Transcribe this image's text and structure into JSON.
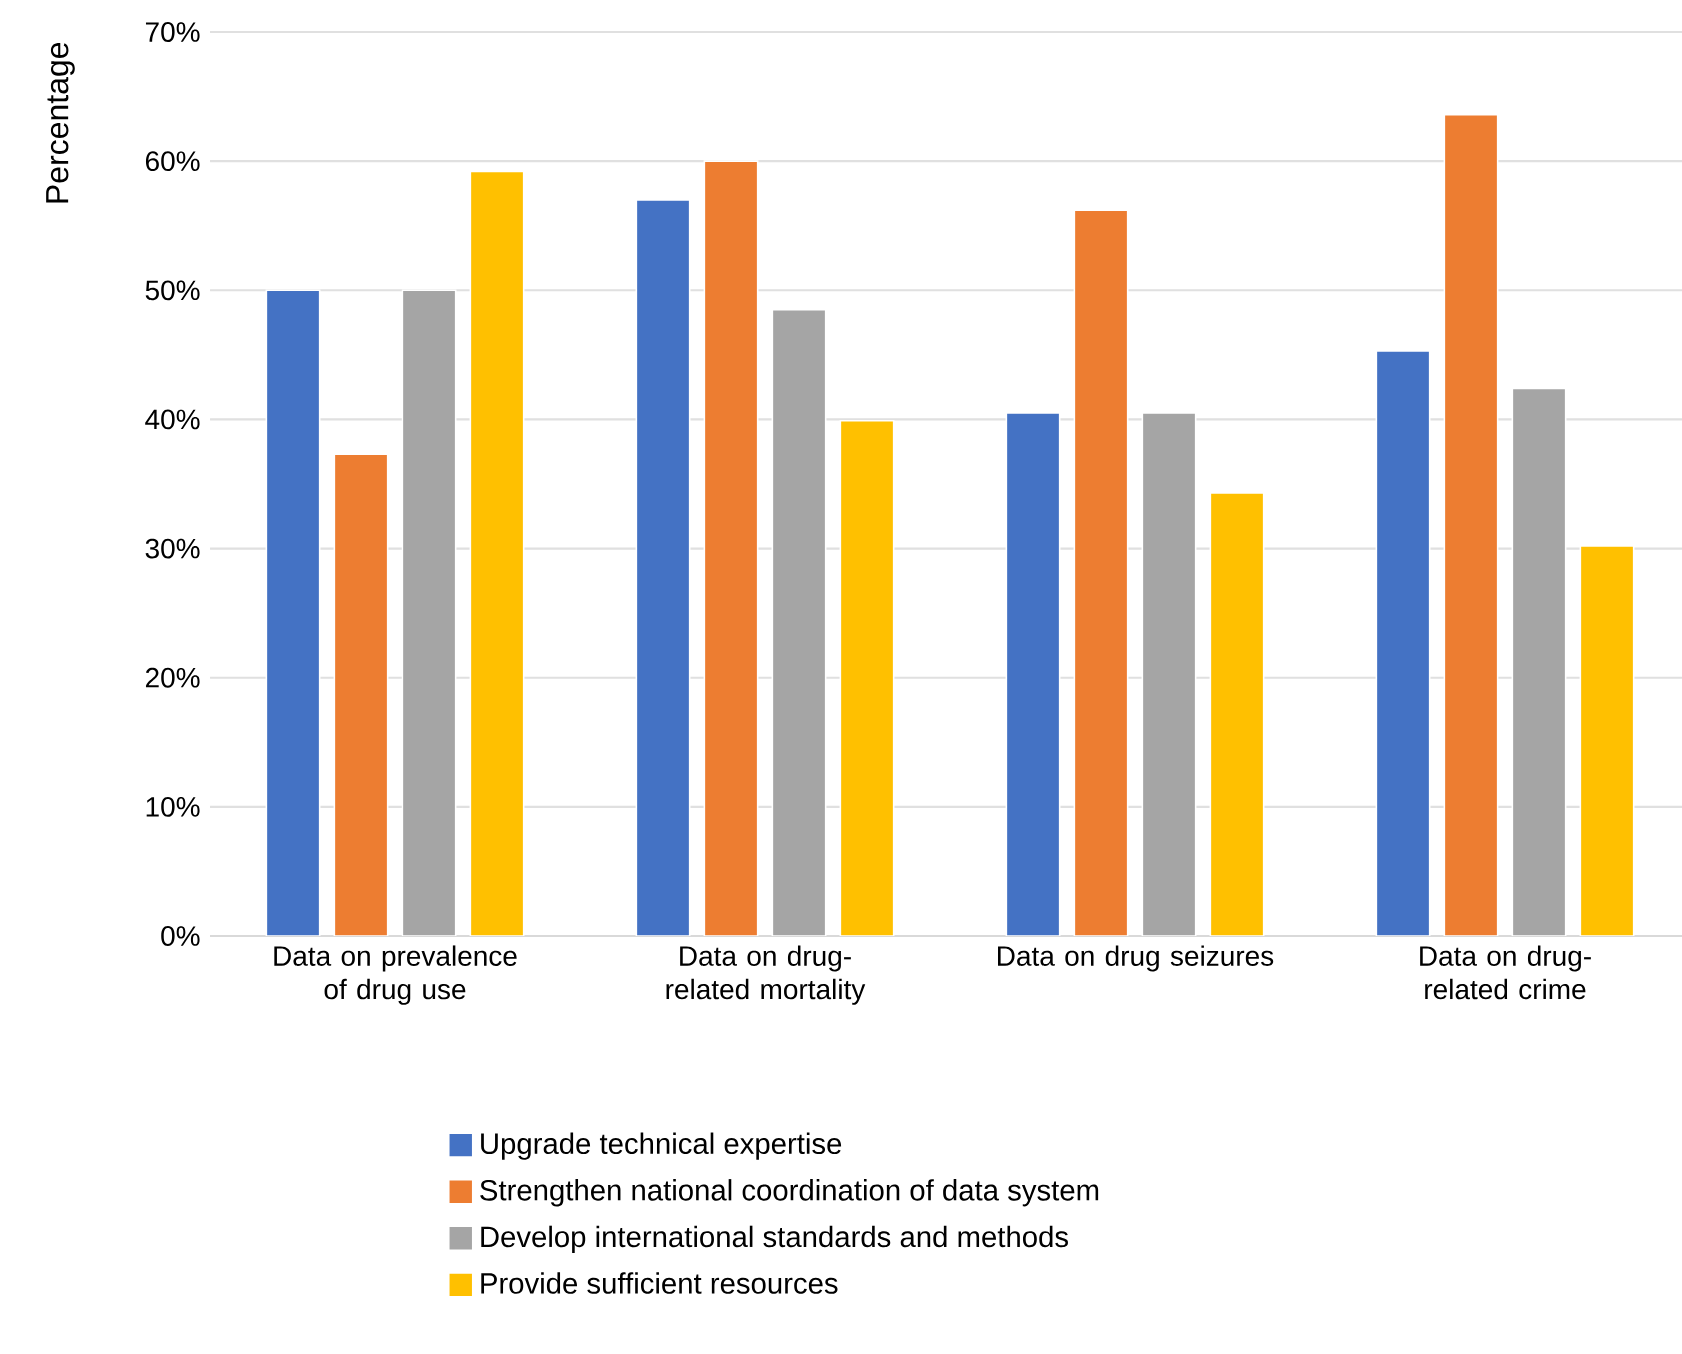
{
  "chart_data": {
    "type": "bar",
    "ylabel": "Percentage",
    "categories": [
      "Data on prevalence of drug use",
      "Data on drug-related mortality",
      "Data on drug seizures",
      "Data on drug-related crime"
    ],
    "series": [
      {
        "name": "Upgrade technical expertise",
        "color": "#4472c4",
        "values": [
          50.0,
          57.0,
          40.5,
          45.3
        ]
      },
      {
        "name": "Strengthen national coordination of data system",
        "color": "#ed7d31",
        "values": [
          37.3,
          60.0,
          56.2,
          63.6
        ]
      },
      {
        "name": "Develop international standards and methods",
        "color": "#a5a5a5",
        "values": [
          50.0,
          48.5,
          40.5,
          42.4
        ]
      },
      {
        "name": "Provide sufficient resources",
        "color": "#ffc000",
        "values": [
          59.2,
          39.9,
          34.3,
          30.2
        ]
      }
    ],
    "ylim": [
      0,
      70
    ],
    "yticks": [
      {
        "value": 0,
        "label": "0%"
      },
      {
        "value": 10,
        "label": "10%"
      },
      {
        "value": 20,
        "label": "20%"
      },
      {
        "value": 30,
        "label": "30%"
      },
      {
        "value": 40,
        "label": "40%"
      },
      {
        "value": 50,
        "label": "50%"
      },
      {
        "value": 60,
        "label": "60%"
      },
      {
        "value": 70,
        "label": "70%"
      }
    ],
    "grid": "y",
    "legend": "bottom"
  }
}
